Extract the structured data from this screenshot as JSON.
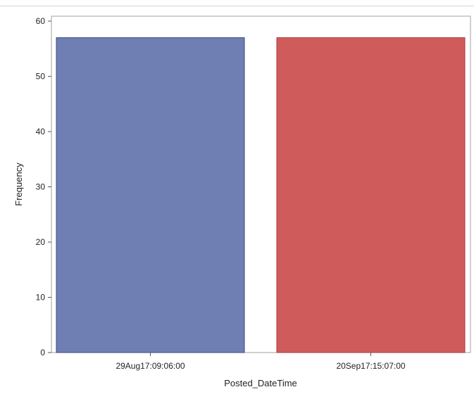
{
  "chart_data": {
    "type": "bar",
    "categories": [
      "29Aug17:09:06:00",
      "20Sep17:15:07:00"
    ],
    "values": [
      57,
      57
    ],
    "colors": [
      "#6F7EB3",
      "#D05B5B"
    ],
    "edge_colors": [
      "#3b4a86",
      "#a83c3c"
    ],
    "xlabel": "Posted_DateTime",
    "ylabel": "Frequency",
    "ylim": [
      0,
      60
    ],
    "yticks": [
      0,
      10,
      20,
      30,
      40,
      50,
      60
    ],
    "grid": false,
    "legend": "none"
  }
}
